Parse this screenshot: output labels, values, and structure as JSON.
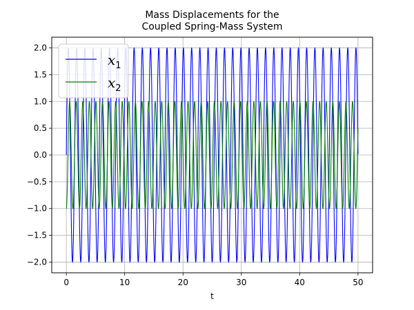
{
  "chart_data": {
    "type": "line",
    "title_lines": [
      "Mass Displacements for the",
      "Coupled Spring-Mass System"
    ],
    "xlabel": "t",
    "ylabel": "",
    "xlim": [
      -2.5,
      52.5
    ],
    "ylim": [
      -2.2,
      2.2
    ],
    "xticks": [
      0,
      10,
      20,
      30,
      40,
      50
    ],
    "xtick_labels": [
      "0",
      "10",
      "20",
      "30",
      "40",
      "50"
    ],
    "yticks": [
      -2.0,
      -1.5,
      -1.0,
      -0.5,
      0.0,
      0.5,
      1.0,
      1.5,
      2.0
    ],
    "ytick_labels": [
      "−2.0",
      "−1.5",
      "−1.0",
      "−0.5",
      "0.0",
      "0.5",
      "1.0",
      "1.5",
      "2.0"
    ],
    "grid": true,
    "legend_position": "top-left",
    "t_range": [
      0,
      50
    ],
    "series": [
      {
        "name": "x",
        "subscript": "1",
        "color": "#0000ff",
        "amplitude": 2.0,
        "period": 1.4085,
        "phase_shift": 1.5708,
        "offset": 0
      },
      {
        "name": "x",
        "subscript": "2",
        "color": "#008000",
        "amplitude": 1.0,
        "period": 1.1278,
        "phase_shift": 0,
        "offset": 0
      }
    ]
  }
}
